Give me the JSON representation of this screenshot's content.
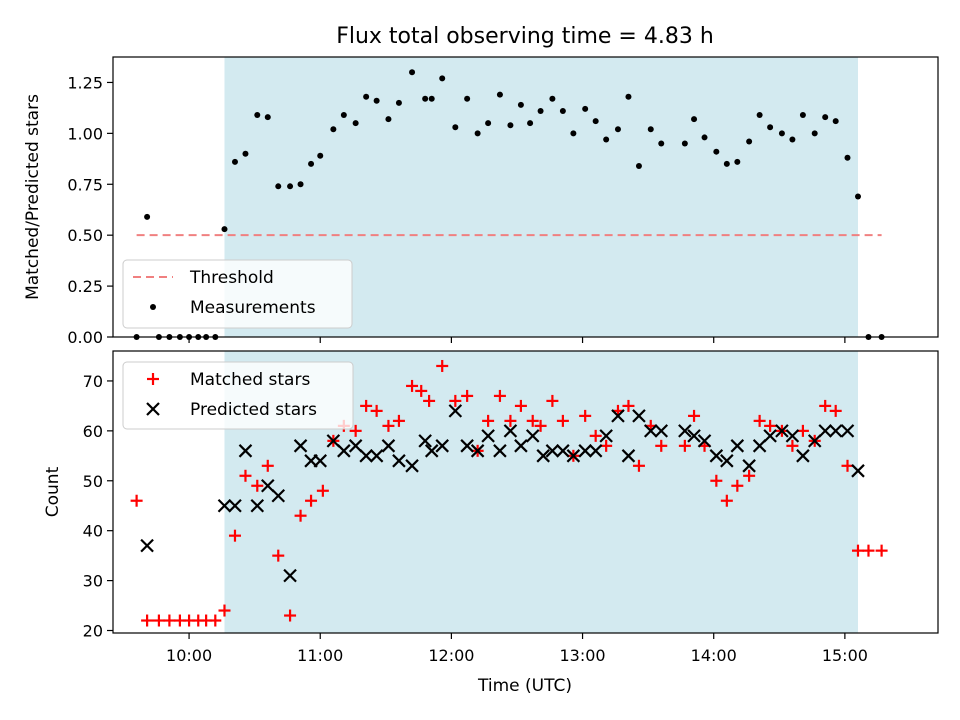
{
  "chart_data": {
    "title": "Flux total observing time = 4.83 h",
    "x_axis": {
      "label": "Time (UTC)",
      "range_hours": [
        9.42,
        15.71
      ],
      "ticks": [
        {
          "value": 10,
          "label": "10:00"
        },
        {
          "value": 11,
          "label": "11:00"
        },
        {
          "value": 12,
          "label": "12:00"
        },
        {
          "value": 13,
          "label": "13:00"
        },
        {
          "value": 14,
          "label": "14:00"
        },
        {
          "value": 15,
          "label": "15:00"
        }
      ]
    },
    "observing_window_hours": [
      10.27,
      15.1
    ],
    "observing_window_color": "#d3eaf0",
    "panels": [
      {
        "id": "ratio",
        "type": "scatter",
        "ylabel": "Matched/Predicted stars",
        "ylim": [
          0,
          1.375
        ],
        "yticks": [
          "0.00",
          "0.25",
          "0.50",
          "0.75",
          "1.00",
          "1.25"
        ],
        "threshold": {
          "name": "Threshold",
          "value": 0.5,
          "x_range": [
            9.6,
            15.28
          ],
          "color": "#f08080"
        },
        "legend": {
          "position": "lower-left",
          "entries": [
            "Threshold",
            "Measurements"
          ]
        },
        "series": [
          {
            "name": "Measurements",
            "marker": "dot",
            "color": "#000000",
            "x": [
              9.6,
              9.68,
              9.77,
              9.85,
              9.93,
              10.0,
              10.07,
              10.13,
              10.2,
              10.27,
              10.35,
              10.43,
              10.52,
              10.6,
              10.68,
              10.77,
              10.85,
              10.93,
              11.0,
              11.1,
              11.18,
              11.27,
              11.35,
              11.43,
              11.52,
              11.6,
              11.7,
              11.8,
              11.85,
              11.93,
              12.03,
              12.12,
              12.2,
              12.28,
              12.37,
              12.45,
              12.53,
              12.6,
              12.68,
              12.77,
              12.85,
              12.93,
              13.02,
              13.1,
              13.18,
              13.27,
              13.35,
              13.43,
              13.52,
              13.6,
              13.78,
              13.85,
              13.93,
              14.02,
              14.1,
              14.18,
              14.27,
              14.35,
              14.43,
              14.52,
              14.6,
              14.68,
              14.77,
              14.85,
              14.93,
              15.02,
              15.1,
              15.18,
              15.28
            ],
            "y": [
              0.0,
              0.59,
              0.0,
              0.0,
              0.0,
              0.0,
              0.0,
              0.0,
              0.0,
              0.53,
              0.86,
              0.9,
              1.09,
              1.08,
              0.74,
              0.74,
              0.75,
              0.85,
              0.89,
              1.02,
              1.09,
              1.05,
              1.18,
              1.16,
              1.07,
              1.15,
              1.3,
              1.17,
              1.17,
              1.27,
              1.03,
              1.17,
              1.0,
              1.05,
              1.19,
              1.04,
              1.14,
              1.05,
              1.11,
              1.17,
              1.11,
              1.0,
              1.12,
              1.06,
              0.97,
              1.02,
              1.18,
              0.84,
              1.02,
              0.95,
              0.95,
              1.07,
              0.98,
              0.91,
              0.85,
              0.86,
              0.96,
              1.09,
              1.03,
              1.0,
              0.97,
              1.09,
              1.0,
              1.08,
              1.06,
              0.88,
              0.69,
              0.0,
              0.0
            ]
          }
        ]
      },
      {
        "id": "counts",
        "type": "scatter",
        "ylabel": "Count",
        "ylim": [
          19.5,
          76
        ],
        "yticks": [
          "20",
          "30",
          "40",
          "50",
          "60",
          "70"
        ],
        "legend": {
          "position": "upper-left",
          "entries": [
            "Matched stars",
            "Predicted stars"
          ]
        },
        "series": [
          {
            "name": "Matched stars",
            "marker": "plus",
            "color": "#ff0000",
            "x": [
              9.6,
              9.68,
              9.77,
              9.85,
              9.93,
              10.0,
              10.07,
              10.13,
              10.2,
              10.27,
              10.35,
              10.43,
              10.52,
              10.6,
              10.68,
              10.77,
              10.85,
              10.93,
              11.02,
              11.1,
              11.18,
              11.27,
              11.35,
              11.43,
              11.52,
              11.6,
              11.7,
              11.77,
              11.83,
              11.93,
              12.03,
              12.12,
              12.2,
              12.28,
              12.37,
              12.45,
              12.53,
              12.62,
              12.68,
              12.77,
              12.85,
              12.93,
              13.02,
              13.1,
              13.18,
              13.27,
              13.35,
              13.43,
              13.52,
              13.6,
              13.78,
              13.85,
              13.93,
              14.02,
              14.1,
              14.18,
              14.27,
              14.35,
              14.43,
              14.52,
              14.6,
              14.68,
              14.77,
              14.85,
              14.93,
              15.02,
              15.1,
              15.18,
              15.28
            ],
            "y": [
              46,
              22,
              22,
              22,
              22,
              22,
              22,
              22,
              22,
              24,
              39,
              51,
              49,
              53,
              35,
              23,
              43,
              46,
              48,
              58,
              61,
              60,
              65,
              64,
              61,
              62,
              69,
              68,
              66,
              73,
              66,
              67,
              56,
              62,
              67,
              62,
              65,
              62,
              61,
              66,
              62,
              55,
              63,
              59,
              57,
              64,
              65,
              53,
              61,
              57,
              57,
              63,
              57,
              50,
              46,
              49,
              51,
              62,
              61,
              60,
              57,
              60,
              58,
              65,
              64,
              53,
              36,
              36,
              36
            ]
          },
          {
            "name": "Predicted stars",
            "marker": "x",
            "color": "#000000",
            "x": [
              9.68,
              10.27,
              10.35,
              10.43,
              10.52,
              10.6,
              10.68,
              10.77,
              10.85,
              10.93,
              11.0,
              11.1,
              11.18,
              11.27,
              11.35,
              11.43,
              11.52,
              11.6,
              11.7,
              11.8,
              11.85,
              11.93,
              12.03,
              12.12,
              12.2,
              12.28,
              12.37,
              12.45,
              12.53,
              12.62,
              12.7,
              12.77,
              12.85,
              12.93,
              13.02,
              13.1,
              13.18,
              13.27,
              13.35,
              13.43,
              13.52,
              13.6,
              13.78,
              13.85,
              13.93,
              14.02,
              14.1,
              14.18,
              14.27,
              14.35,
              14.43,
              14.52,
              14.6,
              14.68,
              14.77,
              14.85,
              14.93,
              15.02,
              15.1
            ],
            "y": [
              37,
              45,
              45,
              56,
              45,
              49,
              47,
              31,
              57,
              54,
              54,
              58,
              56,
              57,
              55,
              55,
              57,
              54,
              53,
              58,
              56,
              57,
              64,
              57,
              56,
              59,
              56,
              60,
              57,
              59,
              55,
              56,
              56,
              55,
              56,
              56,
              59,
              63,
              55,
              63,
              60,
              60,
              60,
              59,
              58,
              55,
              54,
              57,
              53,
              57,
              59,
              60,
              59,
              55,
              58,
              60,
              60,
              60,
              52
            ]
          }
        ]
      }
    ]
  }
}
